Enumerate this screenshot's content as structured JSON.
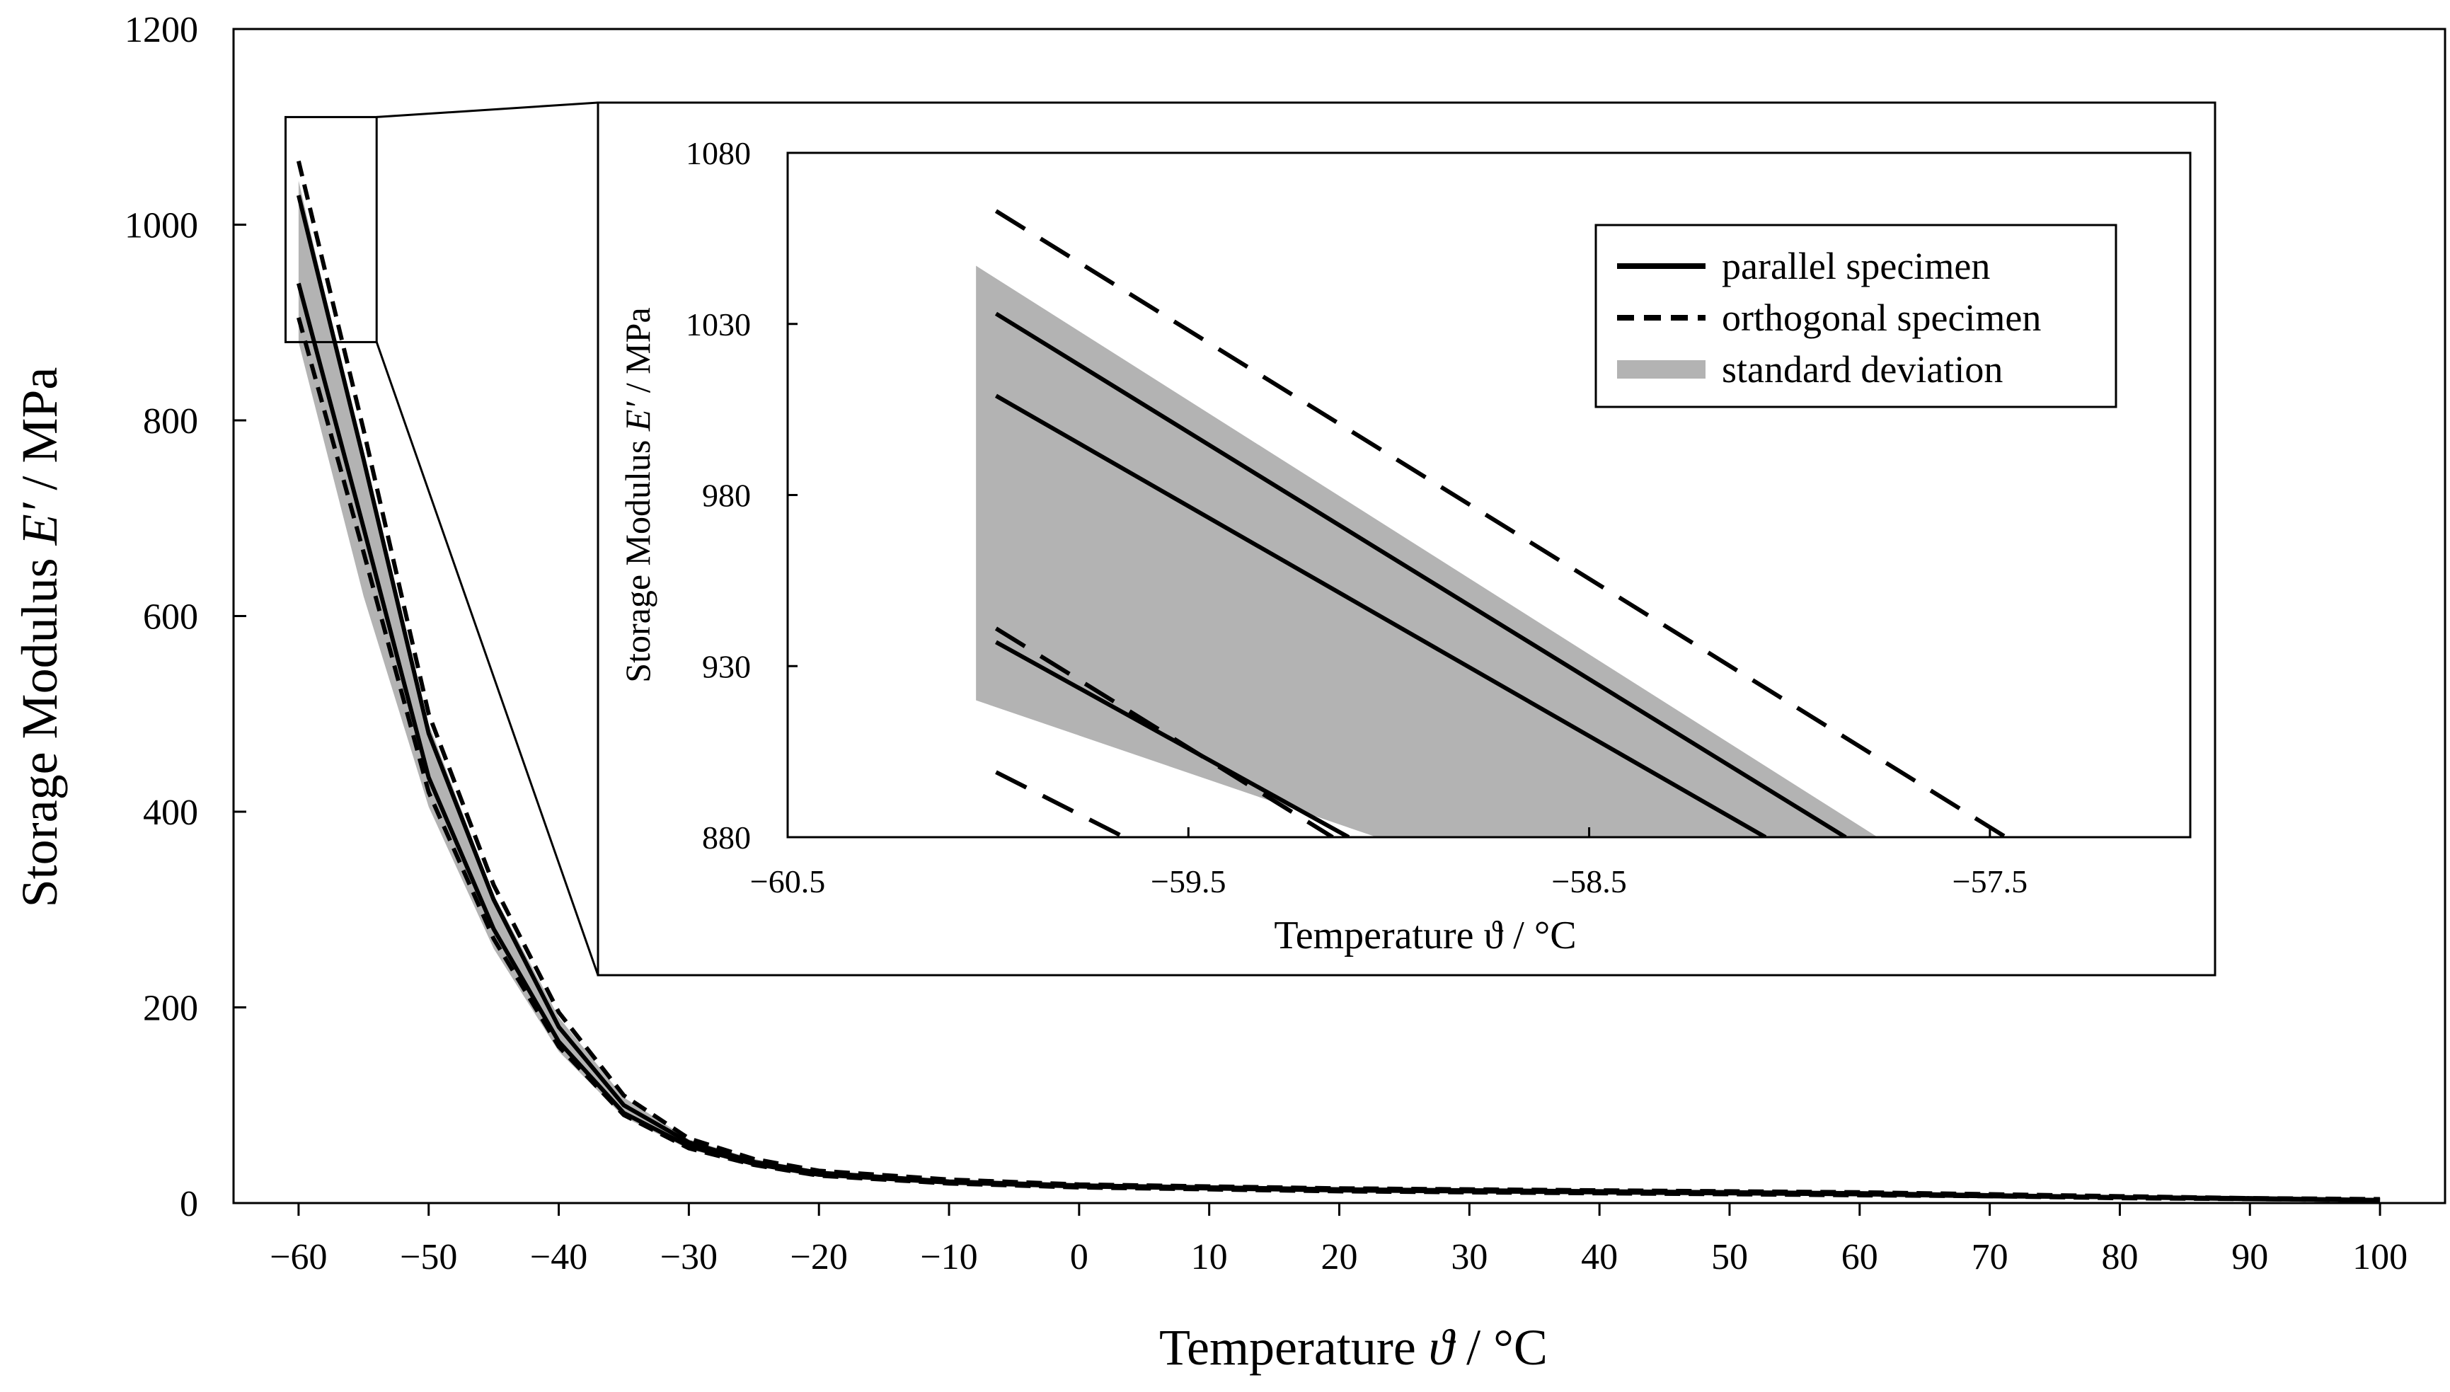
{
  "chart_data": [
    {
      "id": "main",
      "type": "line",
      "xlabel_parts": [
        "Temperature ",
        "ϑ",
        " / °C"
      ],
      "ylabel_parts": [
        "Storage Modulus ",
        "E′",
        " / MPa"
      ],
      "xlim": [
        -65,
        105
      ],
      "ylim": [
        0,
        1200
      ],
      "xticks": [
        -60,
        -50,
        -40,
        -30,
        -20,
        -10,
        0,
        10,
        20,
        30,
        40,
        50,
        60,
        70,
        80,
        90,
        100
      ],
      "xtick_labels": [
        "−60",
        "−50",
        "−40",
        "−30",
        "−20",
        "−10",
        "0",
        "10",
        "20",
        "30",
        "40",
        "50",
        "60",
        "70",
        "80",
        "90",
        "100"
      ],
      "yticks": [
        0,
        200,
        400,
        600,
        800,
        1000,
        1200
      ],
      "ytick_labels": [
        "0",
        "200",
        "400",
        "600",
        "800",
        "1000",
        "1200"
      ],
      "x": [
        -60,
        -55,
        -50,
        -45,
        -40,
        -35,
        -30,
        -25,
        -20,
        -10,
        0,
        10,
        20,
        30,
        40,
        50,
        60,
        70,
        80,
        90,
        100
      ],
      "std_band": {
        "name": "standard deviation",
        "lower": [
          880,
          620,
          405,
          260,
          155,
          88,
          55,
          38,
          28,
          20,
          16,
          14,
          12,
          11,
          10,
          9,
          8,
          7,
          5,
          4,
          3
        ],
        "upper": [
          1045,
          760,
          490,
          315,
          190,
          108,
          65,
          45,
          33,
          24,
          19,
          17,
          15,
          14,
          13,
          12,
          11,
          9,
          7,
          5,
          4
        ]
      },
      "series": [
        {
          "name": "parallel specimen",
          "style": "solid",
          "values": [
            1030,
            760,
            480,
            310,
            180,
            100,
            62,
            42,
            31,
            22,
            18,
            16,
            14,
            13,
            12,
            11,
            10,
            8,
            6,
            5,
            3
          ]
        },
        {
          "name": "parallel specimen",
          "style": "solid",
          "values": [
            940,
            690,
            435,
            280,
            165,
            92,
            58,
            40,
            29,
            21,
            17,
            15,
            13,
            12,
            11,
            10,
            9,
            7,
            6,
            4,
            3
          ]
        },
        {
          "name": "orthogonal specimen",
          "style": "dashed",
          "values": [
            1065,
            790,
            500,
            325,
            195,
            110,
            66,
            45,
            33,
            24,
            19,
            17,
            15,
            14,
            13,
            12,
            11,
            9,
            7,
            5,
            4
          ]
        },
        {
          "name": "orthogonal specimen",
          "style": "dashed",
          "values": [
            905,
            665,
            420,
            270,
            160,
            90,
            56,
            39,
            28,
            20,
            16,
            14,
            12,
            11,
            10,
            9,
            8,
            7,
            5,
            4,
            3
          ]
        }
      ],
      "zoom_region": {
        "x": [
          -61,
          -54
        ],
        "y": [
          880,
          1110
        ]
      }
    },
    {
      "id": "inset",
      "type": "line",
      "xlabel": "Temperature ϑ / °C",
      "ylabel_parts": [
        "Storage Modulus ",
        "E′",
        " / MPa"
      ],
      "xlim": [
        -60.5,
        -57
      ],
      "ylim": [
        880,
        1080
      ],
      "xticks": [
        -60.5,
        -59.5,
        -58.5,
        -57.5
      ],
      "xtick_labels": [
        "−60.5",
        "−59.5",
        "−58.5",
        "−57.5"
      ],
      "yticks": [
        880,
        930,
        980,
        1030,
        1080
      ],
      "ytick_labels": [
        "880",
        "930",
        "980",
        "1030",
        "1080"
      ],
      "legend": {
        "placement": "top-right",
        "entries": [
          {
            "label": "parallel specimen",
            "style": "solid"
          },
          {
            "label": "orthogonal specimen",
            "style": "dashed"
          },
          {
            "label": "standard deviation",
            "style": "band"
          }
        ]
      },
      "std_band": {
        "name": "standard deviation",
        "upper": [
          [
            -60.03,
            1047
          ],
          [
            -57.78,
            880
          ]
        ],
        "lower": [
          [
            -60.03,
            920
          ],
          [
            -59.03,
            880
          ]
        ]
      },
      "series": [
        {
          "name": "parallel specimen",
          "style": "solid",
          "points": [
            [
              -59.98,
              1033
            ],
            [
              -57.86,
              880
            ]
          ]
        },
        {
          "name": "parallel specimen",
          "style": "solid",
          "points": [
            [
              -59.98,
              1009
            ],
            [
              -58.06,
              880
            ]
          ]
        },
        {
          "name": "parallel specimen",
          "style": "solid",
          "points": [
            [
              -59.98,
              937
            ],
            [
              -59.1,
              880
            ]
          ]
        },
        {
          "name": "orthogonal specimen",
          "style": "dashed",
          "points": [
            [
              -59.98,
              1063
            ],
            [
              -57.46,
              880
            ]
          ]
        },
        {
          "name": "orthogonal specimen",
          "style": "dashed",
          "points": [
            [
              -59.98,
              941
            ],
            [
              -59.14,
              880
            ]
          ]
        },
        {
          "name": "orthogonal specimen",
          "style": "dashed",
          "points": [
            [
              -59.98,
              899
            ],
            [
              -59.66,
              880
            ]
          ]
        }
      ]
    }
  ]
}
